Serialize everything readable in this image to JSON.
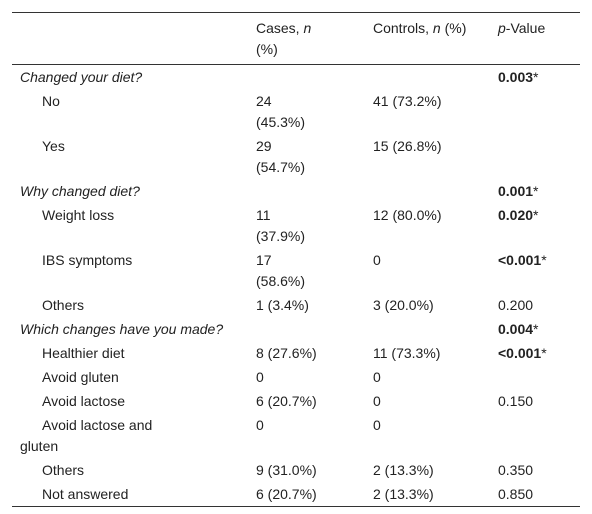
{
  "header": {
    "cases": [
      "Cases, ",
      "n",
      " (%)"
    ],
    "controls": [
      "Controls, ",
      "n",
      " (%)"
    ],
    "p_value": [
      "p",
      "-Value"
    ]
  },
  "rows": [
    {
      "label": "Changed your diet?",
      "section": true,
      "p": {
        "value": "0.003",
        "bold": true,
        "note": "*"
      }
    },
    {
      "label": "No",
      "cases": "24 (45.3%)",
      "controls": "41 (73.2%)"
    },
    {
      "label": "Yes",
      "cases": "29 (54.7%)",
      "controls": "15 (26.8%)"
    },
    {
      "label": "Why changed diet?",
      "section": true,
      "p": {
        "value": "0.001",
        "bold": true,
        "note": "*"
      }
    },
    {
      "label": "Weight loss",
      "cases": "11 (37.9%)",
      "controls": "12 (80.0%)",
      "p": {
        "value": "0.020",
        "bold": true,
        "note": "*"
      }
    },
    {
      "label": "IBS symptoms",
      "cases": "17 (58.6%)",
      "controls": "0",
      "p": {
        "value": "<0.001",
        "bold": true,
        "note": "*"
      }
    },
    {
      "label": "Others",
      "cases": "1 (3.4%)",
      "controls": "3 (20.0%)",
      "p": {
        "value": "0.200"
      }
    },
    {
      "label": "Which changes have you made?",
      "section": true,
      "p": {
        "value": "0.004",
        "bold": true,
        "note": "*"
      }
    },
    {
      "label": "Healthier diet",
      "cases": "8 (27.6%)",
      "controls": "11 (73.3%)",
      "p": {
        "value": "<0.001",
        "bold": true,
        "note": "*"
      }
    },
    {
      "label": "Avoid gluten",
      "cases": "0",
      "controls": "0"
    },
    {
      "label": "Avoid lactose",
      "cases": "6 (20.7%)",
      "controls": "0",
      "p": {
        "value": "0.150"
      }
    },
    {
      "label": "Avoid lactose and gluten",
      "cases": "0",
      "controls": "0"
    },
    {
      "label": "Others",
      "cases": "9 (31.0%)",
      "controls": "2 (13.3%)",
      "p": {
        "value": "0.350"
      }
    },
    {
      "label": "Not answered",
      "cases": "6 (20.7%)",
      "controls": "2 (13.3%)",
      "p": {
        "value": "0.850"
      }
    }
  ]
}
